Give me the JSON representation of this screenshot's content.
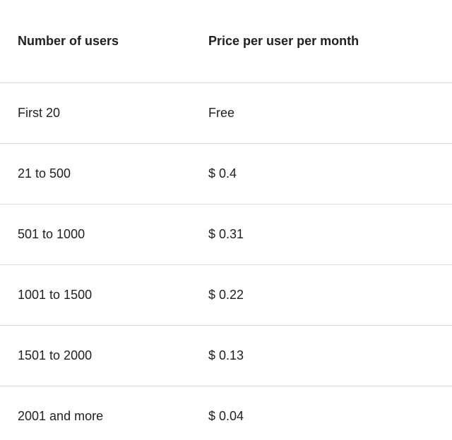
{
  "table": {
    "columns": [
      {
        "label": "Number of users"
      },
      {
        "label": "Price per user per month"
      }
    ],
    "rows": [
      {
        "users": "First 20",
        "price": "Free"
      },
      {
        "users": "21 to 500",
        "price": "$ 0.4"
      },
      {
        "users": "501 to 1000",
        "price": "$ 0.31"
      },
      {
        "users": "1001 to 1500",
        "price": "$ 0.22"
      },
      {
        "users": "1501 to 2000",
        "price": "$ 0.13"
      },
      {
        "users": "2001 and more",
        "price": "$ 0.04"
      }
    ]
  },
  "colors": {
    "text": "#202124",
    "divider": "#dadce0",
    "background": "#ffffff"
  }
}
